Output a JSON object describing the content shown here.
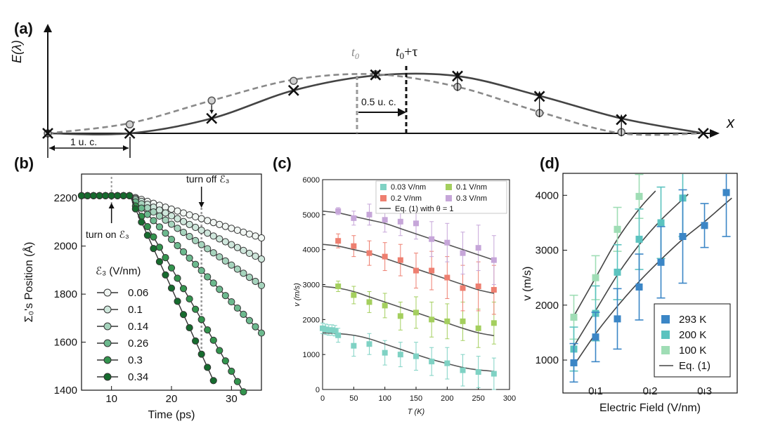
{
  "chart_data": [
    {
      "panel": "(a)",
      "type": "line",
      "ylabel": "E(λ)",
      "xlabel": "x",
      "annotations": {
        "t0": "t",
        "t0_sub": "0",
        "t0tau": "t",
        "t0tau_sub": "0",
        "t0tau_tail": "+τ",
        "shift": "0.5 u. c.",
        "unit_cell": "1 u. c."
      },
      "series": [
        {
          "style": "solid",
          "x": [
            0,
            1,
            2,
            3,
            4,
            5,
            6,
            7,
            8
          ],
          "values": [
            0.0,
            0.0,
            0.25,
            0.72,
            0.97,
            0.96,
            0.63,
            0.25,
            0.0
          ]
        },
        {
          "style": "dashed",
          "x": [
            0,
            1,
            2,
            3,
            4,
            5,
            6,
            7,
            8
          ],
          "values": [
            0.0,
            0.17,
            0.55,
            0.9,
            0.99,
            0.78,
            0.36,
            0.0,
            0.0
          ]
        }
      ],
      "marker_points": {
        "cross": [
          [
            0,
            0.0
          ],
          [
            1,
            0.0
          ],
          [
            2,
            0.25
          ],
          [
            3,
            0.72
          ],
          [
            4,
            0.98
          ],
          [
            5,
            0.96
          ],
          [
            6,
            0.62
          ],
          [
            7,
            0.23
          ],
          [
            8,
            0.0
          ]
        ],
        "circle": [
          [
            0,
            0.0
          ],
          [
            1,
            0.15
          ],
          [
            2,
            0.55
          ],
          [
            3,
            0.88
          ],
          [
            4,
            0.99
          ],
          [
            5,
            0.78
          ],
          [
            6,
            0.34
          ],
          [
            7,
            0.02
          ]
        ]
      }
    },
    {
      "panel": "(b)",
      "type": "line",
      "xlabel": "Time (ps)",
      "ylabel": "Σ₀'s Position (Å)",
      "xlim": [
        5,
        35
      ],
      "ylim": [
        1400,
        2300
      ],
      "xticks": [
        10,
        20,
        30
      ],
      "yticks": [
        1400,
        1600,
        1800,
        2000,
        2200
      ],
      "legend_title": "ℰ₃ (V/nm)",
      "annotations": {
        "turn_on": "turn on ℰ₃",
        "turn_off": "turn off ℰ₃"
      },
      "turn_on_time": 10,
      "turn_off_time": 25,
      "series": [
        {
          "name": "0.06",
          "color": "#f1f6f3",
          "slope": 8
        },
        {
          "name": "0.1",
          "color": "#cfe7dc",
          "slope": 12
        },
        {
          "name": "0.14",
          "color": "#a6d4bd",
          "slope": 17
        },
        {
          "name": "0.26",
          "color": "#6cb98e",
          "slope": 26
        },
        {
          "name": "0.3",
          "color": "#33944e",
          "slope": 43
        },
        {
          "name": "0.34",
          "color": "#166b2e",
          "slope": 55
        }
      ]
    },
    {
      "panel": "(c)",
      "type": "scatter",
      "xlabel": "T (K)",
      "ylabel": "v (m/s)",
      "xlim": [
        0,
        300
      ],
      "ylim": [
        0,
        6000
      ],
      "xticks": [
        0,
        50,
        100,
        150,
        200,
        250,
        300
      ],
      "yticks": [
        0,
        1000,
        2000,
        3000,
        4000,
        5000,
        6000
      ],
      "fit_label": "Eq. (1) with θ = 1",
      "series": [
        {
          "name": "0.03 V/nm",
          "color": "#7fd2c4",
          "x": [
            0,
            5,
            10,
            15,
            20,
            25,
            50,
            75,
            100,
            125,
            150,
            175,
            200,
            225,
            250,
            275
          ],
          "values": [
            1750,
            1720,
            1700,
            1700,
            1680,
            1550,
            1250,
            1300,
            1050,
            1000,
            950,
            800,
            750,
            550,
            500,
            450
          ],
          "err": [
            150,
            150,
            150,
            150,
            150,
            200,
            300,
            300,
            350,
            350,
            400,
            400,
            450,
            450,
            450,
            450
          ],
          "fit": [
            1620,
            1600,
            1550,
            1450,
            1300,
            1150,
            1000,
            860,
            740,
            630,
            560,
            520
          ]
        },
        {
          "name": "0.1 V/nm",
          "color": "#a4cf5e",
          "x": [
            25,
            50,
            75,
            100,
            125,
            150,
            175,
            200,
            225,
            250,
            275
          ],
          "values": [
            2950,
            2700,
            2500,
            2400,
            2100,
            2200,
            2000,
            1950,
            1950,
            1750,
            1900
          ],
          "err": [
            150,
            250,
            300,
            350,
            400,
            450,
            500,
            500,
            550,
            550,
            600
          ],
          "fit": [
            2950,
            2900,
            2800,
            2650,
            2500,
            2350,
            2200,
            2050,
            1900,
            1750,
            1620,
            1540
          ]
        },
        {
          "name": "0.2 V/nm",
          "color": "#ee7f70",
          "x": [
            25,
            50,
            75,
            100,
            125,
            150,
            175,
            200,
            225,
            250,
            275
          ],
          "values": [
            4250,
            4100,
            3900,
            3800,
            3700,
            3400,
            3400,
            3200,
            2900,
            2950,
            2850
          ],
          "err": [
            200,
            300,
            350,
            400,
            450,
            500,
            550,
            600,
            650,
            700,
            700
          ],
          "fit": [
            4150,
            4100,
            4000,
            3900,
            3750,
            3600,
            3450,
            3300,
            3150,
            3000,
            2850,
            2750
          ]
        },
        {
          "name": "0.3 V/nm",
          "color": "#c6a6d9",
          "x": [
            25,
            50,
            75,
            100,
            125,
            150,
            175,
            200,
            225,
            250,
            275
          ],
          "values": [
            5100,
            4900,
            5000,
            4850,
            4800,
            4750,
            4300,
            4200,
            3900,
            4050,
            3700
          ],
          "err": [
            100,
            200,
            300,
            350,
            400,
            450,
            500,
            550,
            600,
            650,
            700
          ],
          "fit": [
            5100,
            5050,
            4950,
            4850,
            4750,
            4600,
            4450,
            4300,
            4150,
            4000,
            3850,
            3700
          ]
        }
      ],
      "fit_x": [
        0,
        25,
        50,
        75,
        100,
        125,
        150,
        175,
        200,
        225,
        250,
        275
      ]
    },
    {
      "panel": "(d)",
      "type": "scatter",
      "xlabel": "Electric Field (V/nm)",
      "ylabel": "v (m/s)",
      "xlim": [
        0.04,
        0.36
      ],
      "ylim": [
        400,
        4400
      ],
      "xticks": [
        0.1,
        0.2,
        0.3
      ],
      "yticks": [
        1000,
        2000,
        3000,
        4000
      ],
      "fit_label": "Eq. (1)",
      "series": [
        {
          "name": "293 K",
          "color": "#3b86c6",
          "x": [
            0.06,
            0.1,
            0.14,
            0.18,
            0.22,
            0.26,
            0.3,
            0.34
          ],
          "values": [
            950,
            1420,
            1750,
            2330,
            2780,
            3250,
            3450,
            4050
          ],
          "err": [
            350,
            450,
            550,
            600,
            650,
            850,
            400,
            800
          ],
          "fit_x": [
            0.06,
            0.1,
            0.14,
            0.18,
            0.22,
            0.26,
            0.3,
            0.35
          ],
          "fit": [
            900,
            1480,
            1980,
            2430,
            2830,
            3200,
            3520,
            3950
          ]
        },
        {
          "name": "200 K",
          "color": "#5bc3bf",
          "x": [
            0.06,
            0.1,
            0.14,
            0.18,
            0.22,
            0.26
          ],
          "values": [
            1200,
            1850,
            2600,
            3200,
            3500,
            3950
          ],
          "err": [
            400,
            500,
            500,
            550,
            650,
            700
          ],
          "fit_x": [
            0.06,
            0.1,
            0.14,
            0.18,
            0.22,
            0.27
          ],
          "fit": [
            1250,
            1900,
            2550,
            3100,
            3550,
            4020
          ]
        },
        {
          "name": "100 K",
          "color": "#9fddb5",
          "x": [
            0.06,
            0.1,
            0.14,
            0.18
          ],
          "values": [
            1780,
            2500,
            3380,
            3980
          ],
          "err": [
            400,
            400,
            400,
            400
          ],
          "fit_x": [
            0.06,
            0.1,
            0.14,
            0.18,
            0.21
          ],
          "fit": [
            1800,
            2500,
            3200,
            3750,
            4080
          ]
        }
      ]
    }
  ],
  "labels": {
    "panel_a": "(a)",
    "panel_b": "(b)",
    "panel_c": "(c)",
    "panel_d": "(d)"
  }
}
